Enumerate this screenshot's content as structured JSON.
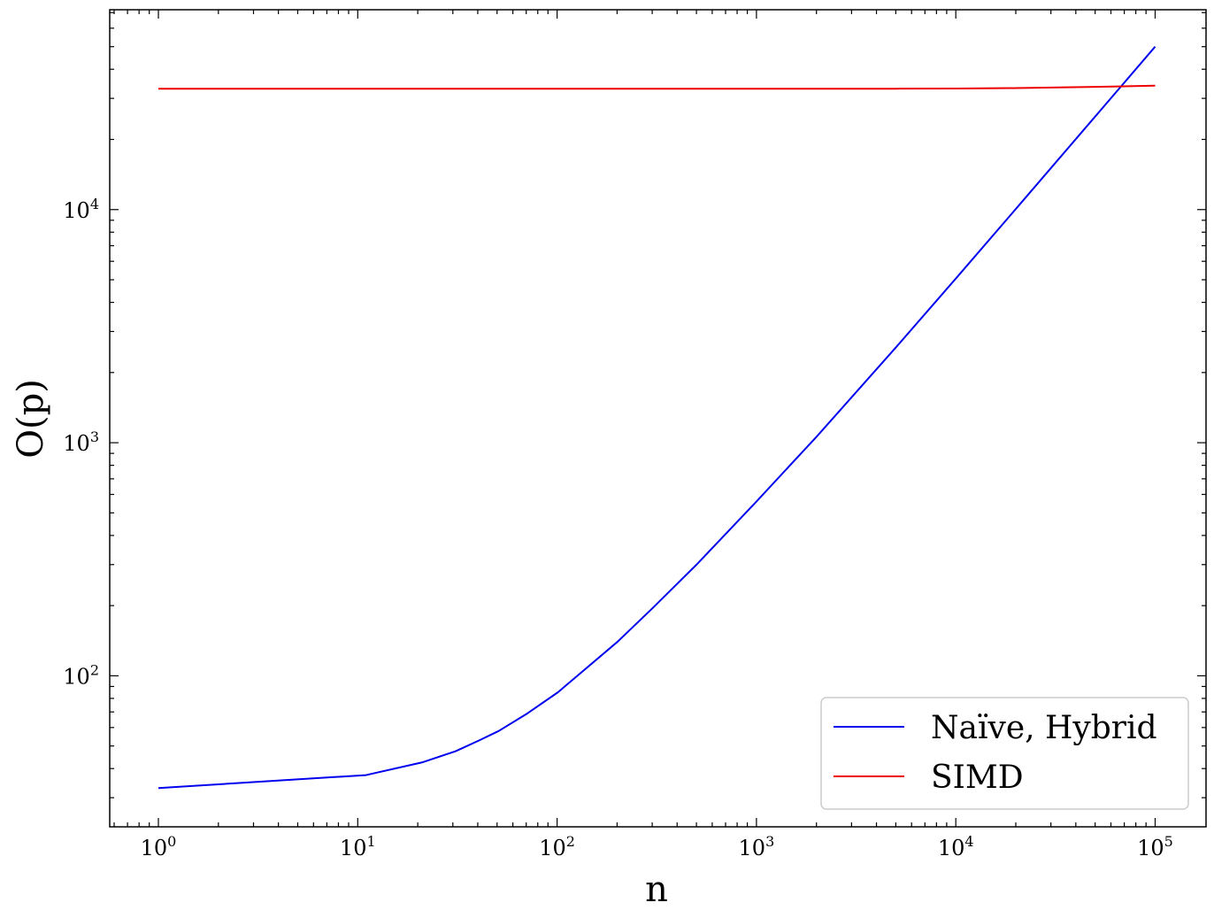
{
  "chart_data": {
    "type": "line",
    "xlabel": "n",
    "ylabel": "O(p)",
    "xscale": "log",
    "yscale": "log",
    "xlim": [
      0.57,
      180000
    ],
    "ylim": [
      22.5,
      72000
    ],
    "x_ticks": [
      {
        "base": "10",
        "exp": "0",
        "value": 1
      },
      {
        "base": "10",
        "exp": "1",
        "value": 10
      },
      {
        "base": "10",
        "exp": "2",
        "value": 100
      },
      {
        "base": "10",
        "exp": "3",
        "value": 1000
      },
      {
        "base": "10",
        "exp": "4",
        "value": 10000
      },
      {
        "base": "10",
        "exp": "5",
        "value": 100000
      }
    ],
    "y_ticks": [
      {
        "base": "10",
        "exp": "2",
        "value": 100
      },
      {
        "base": "10",
        "exp": "3",
        "value": 1000
      },
      {
        "base": "10",
        "exp": "4",
        "value": 10000
      }
    ],
    "grid": false,
    "legend_position": "bottom-right",
    "series": [
      {
        "name": "Naïve, Hybrid",
        "color": "#0000ee",
        "x": [
          1,
          11,
          21,
          31,
          41,
          51,
          71,
          101,
          201,
          301,
          501,
          1001,
          2001,
          5001,
          10001,
          20001,
          50001,
          100001
        ],
        "y": [
          33,
          37.5,
          42.5,
          47.5,
          53,
          58,
          69,
          85,
          140,
          195,
          300,
          560,
          1060,
          2560,
          5060,
          10060,
          25060,
          50000
        ]
      },
      {
        "name": "SIMD",
        "color": "#ee0000",
        "x": [
          1,
          10,
          100,
          1000,
          5000,
          10000,
          20000,
          50000,
          100000
        ],
        "y": [
          33000,
          33000,
          33000,
          33000,
          33010,
          33050,
          33200,
          33600,
          34000
        ]
      }
    ]
  }
}
